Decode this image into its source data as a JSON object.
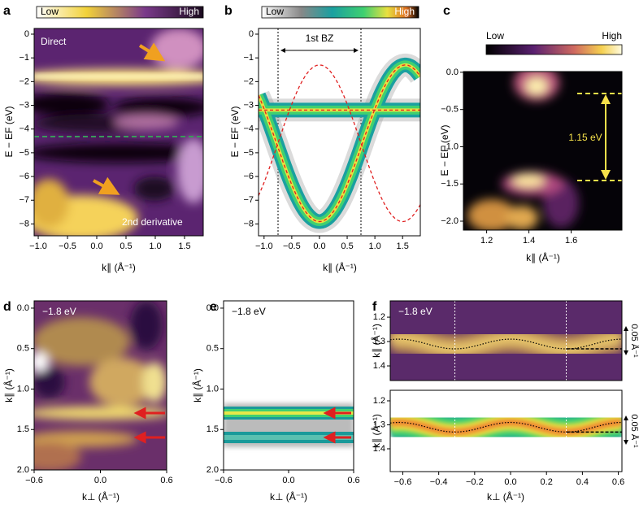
{
  "panels": [
    {
      "label": "a",
      "colorbar": {
        "low": "Low",
        "high": "High"
      },
      "xlabel": "k∥ (Å⁻¹)",
      "ylabel": "E − EF (eV)",
      "xlim": [
        -1.07,
        1.82
      ],
      "ylim": [
        -8.5,
        0.24
      ],
      "xticks": [
        {
          "value": -1,
          "label": "−1.0"
        },
        {
          "value": -0.5,
          "label": "−0.5"
        },
        {
          "value": 0,
          "label": "0.0"
        },
        0.5,
        {
          "value": 1,
          "label": "1.0"
        },
        1.5
      ],
      "yticks": [
        0,
        {
          "value": -1,
          "label": "−1"
        },
        {
          "value": -2,
          "label": "−2"
        },
        {
          "value": -3,
          "label": "−3"
        },
        {
          "value": -4,
          "label": "−4"
        },
        {
          "value": -5,
          "label": "−5"
        },
        {
          "value": -6,
          "label": "−6"
        },
        {
          "value": -7,
          "label": "−7"
        },
        {
          "value": -8,
          "label": "−8"
        }
      ],
      "annotations": [
        "Direct",
        "2nd derivative"
      ]
    },
    {
      "label": "b",
      "colorbar": {
        "low": "Low",
        "high": "High"
      },
      "xlabel": "k∥ (Å⁻¹)",
      "ylabel": "E − EF (eV)",
      "xlim": [
        -1.1,
        1.82
      ],
      "ylim": [
        -8.5,
        0.24
      ],
      "xticks": [
        {
          "value": -1,
          "label": "−1.0"
        },
        {
          "value": -0.5,
          "label": "−0.5"
        },
        {
          "value": 0,
          "label": "0.0"
        },
        0.5,
        {
          "value": 1,
          "label": "1.0"
        },
        1.5
      ],
      "yticks": [
        0,
        {
          "value": -1,
          "label": "−1"
        },
        {
          "value": -2,
          "label": "−2"
        },
        {
          "value": -3,
          "label": "−3"
        },
        {
          "value": -4,
          "label": "−4"
        },
        {
          "value": -5,
          "label": "−5"
        },
        {
          "value": -6,
          "label": "−6"
        },
        {
          "value": -7,
          "label": "−7"
        },
        {
          "value": -8,
          "label": "−8"
        }
      ],
      "annotations": [
        "1st BZ"
      ]
    },
    {
      "label": "c",
      "colorbar": {
        "low": "Low",
        "high": "High"
      },
      "xlabel": "k∥ (Å⁻¹)",
      "ylabel": "E − EF (eV)",
      "xlim": [
        1.09,
        1.84
      ],
      "ylim": [
        -2.12,
        0.01
      ],
      "xticks": [
        1.2,
        1.4,
        1.6
      ],
      "yticks": [
        {
          "value": 0,
          "label": "0.0"
        },
        {
          "value": -0.5,
          "label": "−0.5"
        },
        {
          "value": -1,
          "label": "−1.0"
        },
        {
          "value": -1.5,
          "label": "−1.5"
        },
        {
          "value": -2,
          "label": "−2.0"
        }
      ],
      "annotations": [
        "1.15 eV"
      ]
    },
    {
      "label": "d",
      "xlabel": "k⊥ (Å⁻¹)",
      "ylabel": "k∥ (Å⁻¹)",
      "xlim": [
        -0.6,
        0.6
      ],
      "ylim": [
        2.0,
        -0.09
      ],
      "xticks": [
        {
          "value": -0.6,
          "label": "−0.6"
        },
        {
          "value": 0,
          "label": "0.0"
        },
        0.6
      ],
      "yticks": [
        {
          "value": 0,
          "label": "0.0"
        },
        0.5,
        {
          "value": 1,
          "label": "1.0"
        },
        1.5,
        {
          "value": 2,
          "label": "2.0"
        }
      ],
      "annotations": [
        "−1.8 eV"
      ]
    },
    {
      "label": "e",
      "xlabel": "k⊥ (Å⁻¹)",
      "ylabel": "k∥ (Å⁻¹)",
      "xlim": [
        -0.6,
        0.6
      ],
      "ylim": [
        2.0,
        -0.09
      ],
      "xticks": [
        {
          "value": -0.6,
          "label": "−0.6"
        },
        {
          "value": 0,
          "label": "0.0"
        },
        0.6
      ],
      "yticks": [
        {
          "value": 0,
          "label": "0.0"
        },
        0.5,
        {
          "value": 1,
          "label": "1.0"
        },
        1.5,
        {
          "value": 2,
          "label": "2.0"
        }
      ],
      "annotations": [
        "−1.8 eV"
      ]
    },
    {
      "label": "f",
      "ylabel": "k∥ (Å⁻¹)",
      "xlim": [
        -0.67,
        0.62
      ],
      "ylim": [
        1.46,
        1.133
      ],
      "yticks": [
        1.2,
        1.3,
        1.4
      ],
      "annotations": [
        "−1.8 eV",
        "0.05 Å⁻¹"
      ]
    },
    {
      "xlabel": "k⊥ (Å⁻¹)",
      "ylabel": "k∥ (Å⁻¹)",
      "xlim": [
        -0.67,
        0.62
      ],
      "ylim": [
        1.495,
        1.156
      ],
      "xticks": [
        {
          "value": -0.6,
          "label": "−0.6"
        },
        {
          "value": -0.4,
          "label": "−0.4"
        },
        {
          "value": -0.2,
          "label": "−0.2"
        },
        {
          "value": 0,
          "label": "0.0"
        },
        0.2,
        0.4,
        0.6
      ],
      "yticks": [
        1.2,
        1.3,
        1.4
      ],
      "annotations": [
        "0.05 Å⁻¹"
      ]
    }
  ]
}
